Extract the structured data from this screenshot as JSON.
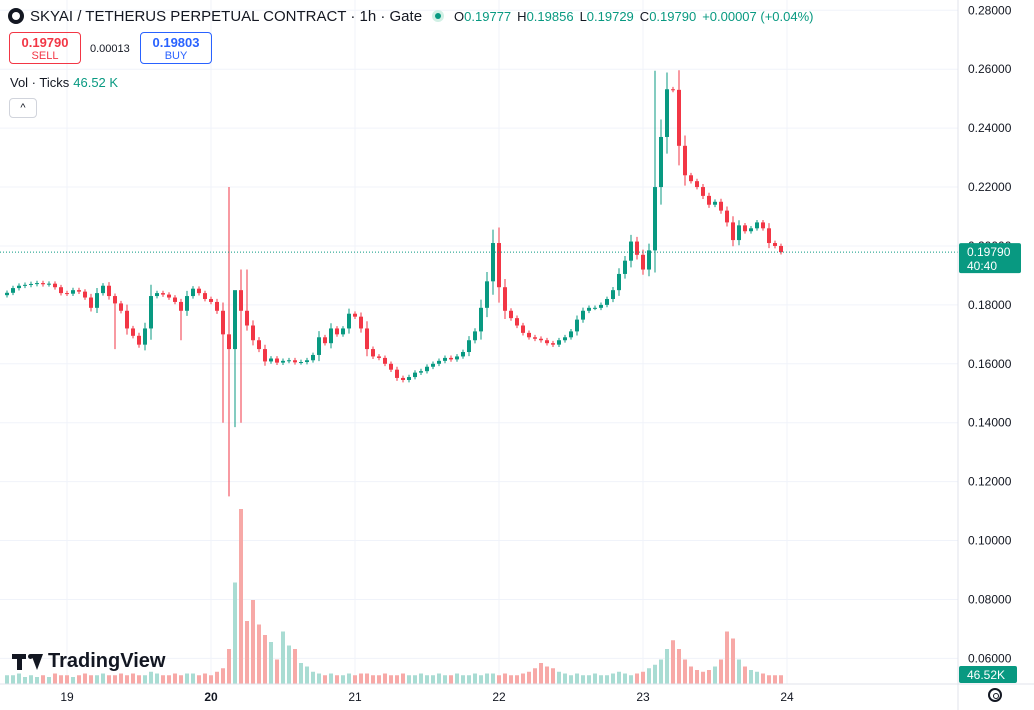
{
  "header": {
    "title": "SKYAI / TETHERUS PERPETUAL CONTRACT · 1h · Gate",
    "o_label": "O",
    "o_value": "0.19777",
    "h_label": "H",
    "h_value": "0.19856",
    "l_label": "L",
    "l_value": "0.19729",
    "c_label": "C",
    "c_value": "0.19790",
    "change": "+0.00007 (+0.04%)"
  },
  "trade": {
    "sell_price": "0.19790",
    "sell_label": "SELL",
    "spread": "0.00013",
    "buy_price": "0.19803",
    "buy_label": "BUY"
  },
  "volume_legend": {
    "label": "Vol · Ticks",
    "value": "46.52 K"
  },
  "collapse_label": "^",
  "brand": "TradingView",
  "colors": {
    "up": "#089981",
    "down": "#f23645",
    "up_vol": "#a9dcd3",
    "down_vol": "#f7a9a7",
    "grid": "#f0f3fa",
    "buy": "#2962ff"
  },
  "icons": {
    "settings": "gear-icon",
    "symbol": "symbol-logo-icon",
    "status": "market-open-icon"
  },
  "chart_data": {
    "type": "candlestick",
    "price_axis_ticks": [
      "0.28000",
      "0.26000",
      "0.24000",
      "0.22000",
      "0.20000",
      "0.18000",
      "0.16000",
      "0.14000",
      "0.12000",
      "0.10000",
      "0.08000",
      "0.06000"
    ],
    "ylim": [
      0.0513,
      0.2835
    ],
    "time_axis_ticks": [
      {
        "label": "19",
        "bold": false,
        "idx": 10
      },
      {
        "label": "20",
        "bold": true,
        "idx": 34
      },
      {
        "label": "21",
        "bold": false,
        "idx": 58
      },
      {
        "label": "22",
        "bold": false,
        "idx": 82
      },
      {
        "label": "23",
        "bold": false,
        "idx": 106
      },
      {
        "label": "24",
        "bold": false,
        "idx": 130
      }
    ],
    "last_price": "0.19790",
    "countdown": "40:40",
    "last_volume": "46.52K",
    "close_path": [
      0.1841,
      0.1857,
      0.1865,
      0.1868,
      0.1871,
      0.1874,
      0.187,
      0.1872,
      0.186,
      0.184,
      0.1838,
      0.185,
      0.1845,
      0.1825,
      0.179,
      0.184,
      0.1865,
      0.183,
      0.1805,
      0.178,
      0.172,
      0.1695,
      0.1665,
      0.172,
      0.183,
      0.184,
      0.1835,
      0.1825,
      0.181,
      0.178,
      0.183,
      0.1855,
      0.184,
      0.182,
      0.181,
      0.178,
      0.17,
      0.165,
      0.185,
      0.178,
      0.173,
      0.168,
      0.165,
      0.1608,
      0.1618,
      0.1604,
      0.161,
      0.1612,
      0.1605,
      0.1606,
      0.1612,
      0.163,
      0.169,
      0.167,
      0.172,
      0.17,
      0.172,
      0.177,
      0.176,
      0.172,
      0.165,
      0.1625,
      0.162,
      0.16,
      0.158,
      0.1552,
      0.1545,
      0.1555,
      0.157,
      0.1575,
      0.159,
      0.16,
      0.161,
      0.162,
      0.1615,
      0.1625,
      0.164,
      0.168,
      0.171,
      0.179,
      0.188,
      0.201,
      0.186,
      0.178,
      0.1755,
      0.173,
      0.1705,
      0.169,
      0.1685,
      0.168,
      0.167,
      0.1665,
      0.168,
      0.169,
      0.171,
      0.175,
      0.178,
      0.179,
      0.179,
      0.18,
      0.182,
      0.185,
      0.1905,
      0.195,
      0.2015,
      0.197,
      0.192,
      0.1985,
      0.22,
      0.237,
      0.2532,
      0.253,
      0.234,
      0.224,
      0.222,
      0.22,
      0.217,
      0.214,
      0.215,
      0.212,
      0.208,
      0.202,
      0.207,
      0.205,
      0.206,
      0.208,
      0.206,
      0.201,
      0.2,
      0.1979
    ],
    "volume_fraction": [
      0.05,
      0.05,
      0.06,
      0.04,
      0.05,
      0.04,
      0.05,
      0.04,
      0.06,
      0.05,
      0.05,
      0.04,
      0.05,
      0.06,
      0.05,
      0.05,
      0.06,
      0.05,
      0.05,
      0.06,
      0.05,
      0.06,
      0.05,
      0.05,
      0.07,
      0.06,
      0.05,
      0.05,
      0.06,
      0.05,
      0.06,
      0.06,
      0.05,
      0.06,
      0.05,
      0.07,
      0.09,
      0.2,
      0.58,
      1.0,
      0.36,
      0.48,
      0.34,
      0.28,
      0.24,
      0.14,
      0.3,
      0.22,
      0.2,
      0.12,
      0.1,
      0.07,
      0.06,
      0.05,
      0.06,
      0.05,
      0.05,
      0.06,
      0.05,
      0.06,
      0.06,
      0.05,
      0.05,
      0.06,
      0.05,
      0.05,
      0.06,
      0.05,
      0.05,
      0.06,
      0.05,
      0.05,
      0.06,
      0.05,
      0.05,
      0.06,
      0.05,
      0.05,
      0.06,
      0.05,
      0.06,
      0.06,
      0.05,
      0.06,
      0.05,
      0.05,
      0.06,
      0.07,
      0.09,
      0.12,
      0.1,
      0.09,
      0.07,
      0.06,
      0.05,
      0.06,
      0.05,
      0.05,
      0.06,
      0.05,
      0.05,
      0.06,
      0.07,
      0.06,
      0.05,
      0.06,
      0.07,
      0.09,
      0.11,
      0.14,
      0.2,
      0.25,
      0.2,
      0.14,
      0.1,
      0.08,
      0.07,
      0.08,
      0.1,
      0.14,
      0.3,
      0.26,
      0.14,
      0.1,
      0.08,
      0.07,
      0.06,
      0.05,
      0.05,
      0.05,
      0.05,
      0.04
    ]
  }
}
